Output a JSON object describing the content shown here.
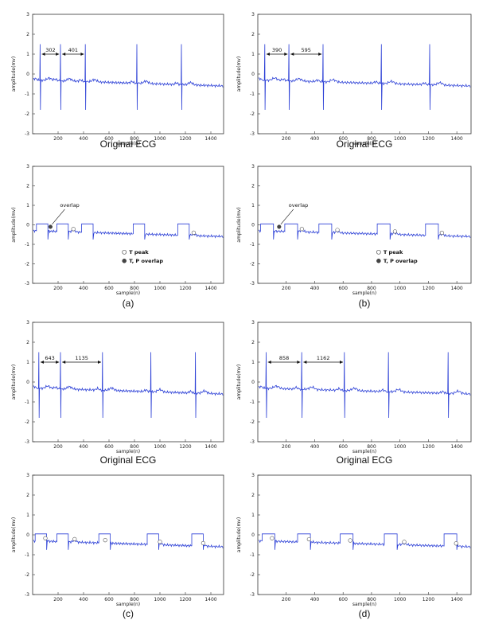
{
  "chart_data": [
    {
      "type": "line",
      "panel": "a-top",
      "caption": "Original  ECG",
      "xlabel": "sample(n)",
      "ylabel": "amplitude(mv)",
      "xlim": [
        0,
        1500
      ],
      "ylim": [
        -3,
        3
      ],
      "xticks": [
        200,
        400,
        600,
        800,
        1000,
        1200,
        1400
      ],
      "yticks": [
        3,
        2,
        1,
        0,
        -1,
        -2,
        -3
      ],
      "spikes": [
        60,
        220,
        415,
        820,
        1170
      ],
      "intervals": [
        {
          "label": "302",
          "from": 60,
          "to": 220
        },
        {
          "label": "401",
          "from": 220,
          "to": 415
        }
      ],
      "legend": null
    },
    {
      "type": "line",
      "panel": "b-top",
      "caption": "Original  ECG",
      "xlabel": "sample(n)",
      "ylabel": "amplitude(mv)",
      "xlim": [
        0,
        1500
      ],
      "ylim": [
        -3,
        3
      ],
      "xticks": [
        200,
        400,
        600,
        800,
        1000,
        1200,
        1400
      ],
      "yticks": [
        3,
        2,
        1,
        0,
        -1,
        -2,
        -3
      ],
      "spikes": [
        50,
        220,
        460,
        870,
        1210
      ],
      "intervals": [
        {
          "label": "390",
          "from": 50,
          "to": 220
        },
        {
          "label": "595",
          "from": 220,
          "to": 460
        }
      ],
      "legend": null
    },
    {
      "type": "line",
      "panel": "a-bottom",
      "caption": "(a)",
      "xlabel": "sample(n)",
      "ylabel": "amplitude(mv)",
      "xlim": [
        0,
        1500
      ],
      "ylim": [
        -3,
        3
      ],
      "xticks": [
        200,
        400,
        600,
        800,
        1000,
        1200,
        1400
      ],
      "yticks": [
        3,
        2,
        1,
        0,
        -1,
        -2,
        -3
      ],
      "spikes": [
        60,
        220,
        415,
        820,
        1170
      ],
      "t_peaks": [
        320,
        1265
      ],
      "overlaps": [
        140
      ],
      "annotation": "overlap",
      "legend": [
        "T peak",
        "T, P overlap"
      ]
    },
    {
      "type": "line",
      "panel": "b-bottom",
      "caption": "(b)",
      "xlabel": "sample(n)",
      "ylabel": "amplitude(mv)",
      "xlim": [
        0,
        1500
      ],
      "ylim": [
        -3,
        3
      ],
      "xticks": [
        200,
        400,
        600,
        800,
        1000,
        1200,
        1400
      ],
      "yticks": [
        3,
        2,
        1,
        0,
        -1,
        -2,
        -3
      ],
      "spikes": [
        50,
        220,
        460,
        870,
        1210
      ],
      "t_peaks": [
        310,
        560,
        965,
        1295
      ],
      "overlaps": [
        150
      ],
      "annotation": "overlap",
      "legend": [
        "T peak",
        "T, P overlap"
      ]
    },
    {
      "type": "line",
      "panel": "c-top",
      "caption": "Original  ECG",
      "xlabel": "sample(n)",
      "ylabel": "amplitude(mv)",
      "xlim": [
        0,
        1500
      ],
      "ylim": [
        -3,
        3
      ],
      "xticks": [
        200,
        400,
        600,
        800,
        1000,
        1200,
        1400
      ],
      "yticks": [
        3,
        2,
        1,
        0,
        -1,
        -2,
        -3
      ],
      "spikes": [
        50,
        220,
        550,
        930,
        1280
      ],
      "intervals": [
        {
          "label": "643",
          "from": 50,
          "to": 220
        },
        {
          "label": "1135",
          "from": 220,
          "to": 550
        }
      ],
      "legend": null
    },
    {
      "type": "line",
      "panel": "d-top",
      "caption": "Original  ECG",
      "xlabel": "sample(n)",
      "ylabel": "amplitude(mv)",
      "xlim": [
        0,
        1500
      ],
      "ylim": [
        -3,
        3
      ],
      "xticks": [
        200,
        400,
        600,
        800,
        1000,
        1200,
        1400
      ],
      "yticks": [
        3,
        2,
        1,
        0,
        -1,
        -2,
        -3
      ],
      "spikes": [
        60,
        310,
        610,
        920,
        1340
      ],
      "intervals": [
        {
          "label": "858",
          "from": 60,
          "to": 310
        },
        {
          "label": "1162",
          "from": 310,
          "to": 610
        }
      ],
      "legend": null
    },
    {
      "type": "line",
      "panel": "c-bottom",
      "caption": "(c)",
      "xlabel": "sample(n)",
      "ylabel": "amplitude(mv)",
      "xlim": [
        0,
        1500
      ],
      "ylim": [
        -3,
        3
      ],
      "xticks": [
        200,
        400,
        600,
        800,
        1000,
        1200,
        1400
      ],
      "yticks": [
        3,
        2,
        1,
        0,
        -1,
        -2,
        -3
      ],
      "spikes": [
        50,
        220,
        550,
        930,
        1280
      ],
      "t_peaks": [
        100,
        330,
        570,
        1000,
        1340
      ],
      "overlaps": [],
      "legend": null
    },
    {
      "type": "line",
      "panel": "d-bottom",
      "caption": "(d)",
      "xlabel": "sample(n)",
      "ylabel": "amplitude(mv)",
      "xlim": [
        0,
        1500
      ],
      "ylim": [
        -3,
        3
      ],
      "xticks": [
        200,
        400,
        600,
        800,
        1000,
        1200,
        1400
      ],
      "yticks": [
        3,
        2,
        1,
        0,
        -1,
        -2,
        -3
      ],
      "spikes": [
        60,
        310,
        610,
        920,
        1340
      ],
      "t_peaks": [
        100,
        360,
        650,
        1030,
        1395
      ],
      "overlaps": [],
      "legend": null
    }
  ],
  "style": {
    "line_color": "#2b3fd6",
    "axis_color": "#333333",
    "marker_fill_overlap": "#444444"
  }
}
